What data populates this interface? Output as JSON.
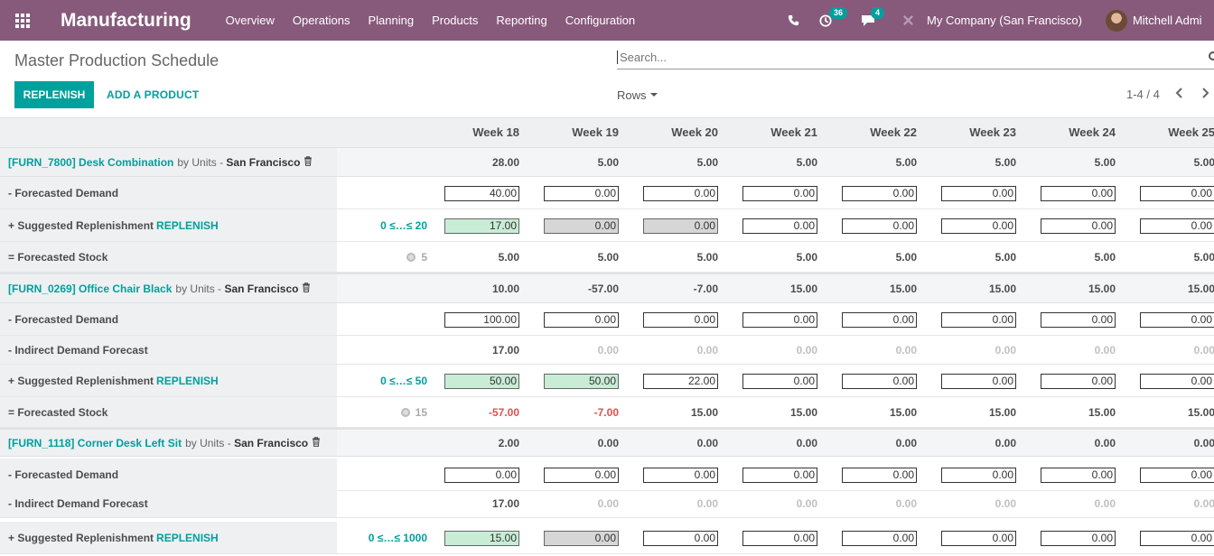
{
  "navbar": {
    "brand": "Manufacturing",
    "menu": [
      "Overview",
      "Operations",
      "Planning",
      "Products",
      "Reporting",
      "Configuration"
    ],
    "activity_count": "36",
    "message_count": "4",
    "company": "My Company (San Francisco)",
    "user": "Mitchell Admi"
  },
  "control": {
    "title": "Master Production Schedule",
    "search_placeholder": "Search...",
    "replenish_label": "REPLENISH",
    "add_product_label": "ADD A PRODUCT",
    "rows_label": "Rows",
    "pager": "1-4 / 4"
  },
  "weeks": [
    "Week 18",
    "Week 19",
    "Week 20",
    "Week 21",
    "Week 22",
    "Week 23",
    "Week 24",
    "Week 25"
  ],
  "rows": [
    {
      "kind": "product",
      "code": "[FURN_7800] Desk Combination",
      "by": "by Units",
      "loc": "San Francisco",
      "values": [
        "28.00",
        "5.00",
        "5.00",
        "5.00",
        "5.00",
        "5.00",
        "5.00",
        "5.00"
      ]
    },
    {
      "kind": "input",
      "label": "- Forecasted Demand",
      "values": [
        "40.00",
        "0.00",
        "0.00",
        "0.00",
        "0.00",
        "0.00",
        "0.00",
        "0.00"
      ],
      "styles": [
        "",
        "",
        "",
        "",
        "",
        "",
        "",
        ""
      ]
    },
    {
      "kind": "replenish",
      "label": "+ Suggested Replenishment",
      "link": "REPLENISH",
      "range": "0 ≤…≤ 20",
      "values": [
        "17.00",
        "0.00",
        "0.00",
        "0.00",
        "0.00",
        "0.00",
        "0.00",
        "0.00"
      ],
      "styles": [
        "green",
        "gray",
        "gray",
        "",
        "",
        "",
        "",
        ""
      ]
    },
    {
      "kind": "stock",
      "label": "= Forecasted Stock",
      "safety": "5",
      "values": [
        "5.00",
        "5.00",
        "5.00",
        "5.00",
        "5.00",
        "5.00",
        "5.00",
        "5.00"
      ],
      "styles": [
        "",
        "",
        "",
        "",
        "",
        "",
        "",
        ""
      ]
    },
    {
      "kind": "product",
      "code": "[FURN_0269] Office Chair Black",
      "by": "by Units",
      "loc": "San Francisco",
      "values": [
        "10.00",
        "-57.00",
        "-7.00",
        "15.00",
        "15.00",
        "15.00",
        "15.00",
        "15.00"
      ]
    },
    {
      "kind": "input",
      "label": "- Forecasted Demand",
      "values": [
        "100.00",
        "0.00",
        "0.00",
        "0.00",
        "0.00",
        "0.00",
        "0.00",
        "0.00"
      ],
      "styles": [
        "",
        "",
        "",
        "",
        "",
        "",
        "",
        ""
      ]
    },
    {
      "kind": "text",
      "label": "- Indirect Demand Forecast",
      "values": [
        "17.00",
        "0.00",
        "0.00",
        "0.00",
        "0.00",
        "0.00",
        "0.00",
        "0.00"
      ],
      "styles": [
        "",
        "muted",
        "muted",
        "muted",
        "muted",
        "muted",
        "muted",
        "muted"
      ]
    },
    {
      "kind": "replenish",
      "label": "+ Suggested Replenishment",
      "link": "REPLENISH",
      "range": "0 ≤…≤ 50",
      "values": [
        "50.00",
        "50.00",
        "22.00",
        "0.00",
        "0.00",
        "0.00",
        "0.00",
        "0.00"
      ],
      "styles": [
        "green",
        "green",
        "",
        "",
        "",
        "",
        "",
        ""
      ]
    },
    {
      "kind": "stock",
      "label": "= Forecasted Stock",
      "safety": "15",
      "values": [
        "-57.00",
        "-7.00",
        "15.00",
        "15.00",
        "15.00",
        "15.00",
        "15.00",
        "15.00"
      ],
      "styles": [
        "neg",
        "neg",
        "",
        "",
        "",
        "",
        "",
        ""
      ]
    },
    {
      "kind": "product",
      "code": "[FURN_1118] Corner Desk Left Sit",
      "by": "by Units",
      "loc": "San Francisco",
      "values": [
        "2.00",
        "0.00",
        "0.00",
        "0.00",
        "0.00",
        "0.00",
        "0.00",
        "0.00"
      ]
    },
    {
      "kind": "input",
      "label": "- Forecasted Demand",
      "values": [
        "0.00",
        "0.00",
        "0.00",
        "0.00",
        "0.00",
        "0.00",
        "0.00",
        "0.00"
      ],
      "styles": [
        "",
        "",
        "",
        "",
        "",
        "",
        "",
        ""
      ]
    },
    {
      "kind": "text",
      "label": "- Indirect Demand Forecast",
      "values": [
        "17.00",
        "0.00",
        "0.00",
        "0.00",
        "0.00",
        "0.00",
        "0.00",
        "0.00"
      ],
      "styles": [
        "",
        "muted",
        "muted",
        "muted",
        "muted",
        "muted",
        "muted",
        "muted"
      ]
    },
    {
      "kind": "replenish",
      "label": "+ Suggested Replenishment",
      "link": "REPLENISH",
      "range": "0 ≤…≤ 1000",
      "values": [
        "15.00",
        "0.00",
        "0.00",
        "0.00",
        "0.00",
        "0.00",
        "0.00",
        "0.00"
      ],
      "styles": [
        "green",
        "gray",
        "",
        "",
        "",
        "",
        "",
        ""
      ]
    }
  ]
}
